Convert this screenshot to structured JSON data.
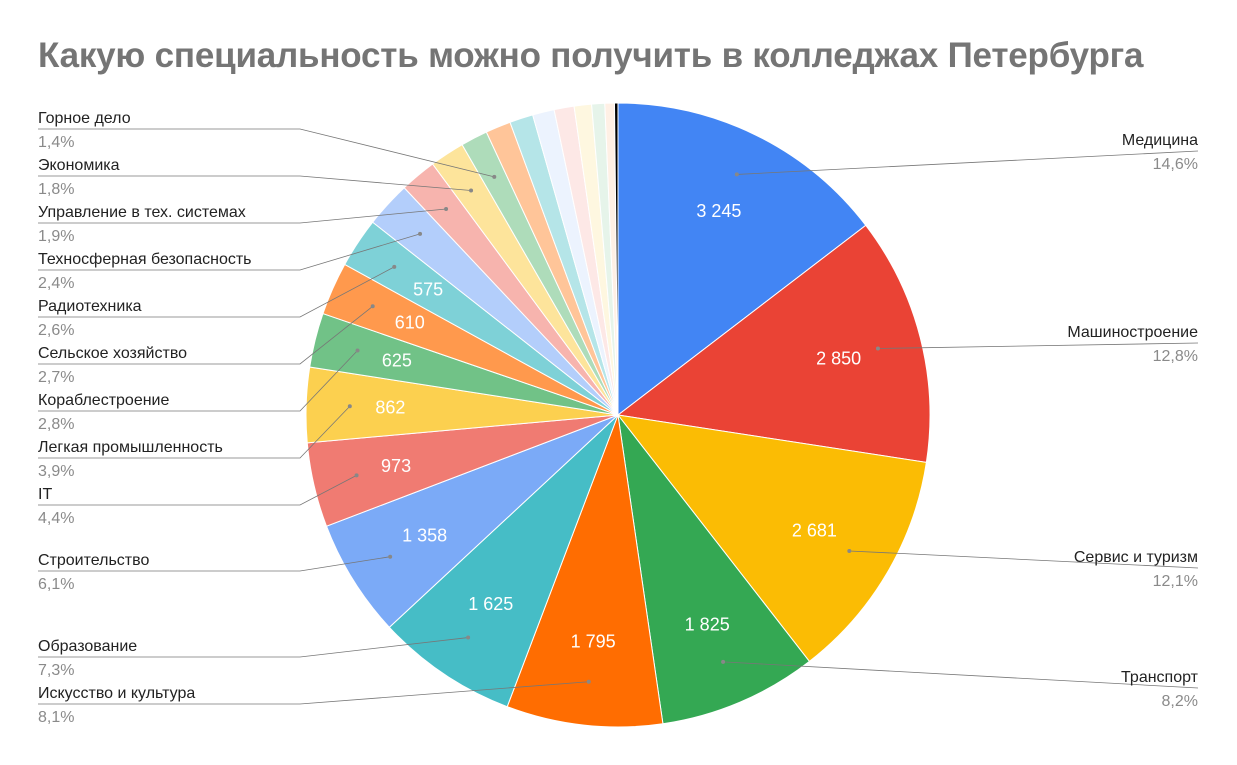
{
  "chart_data": {
    "type": "pie",
    "title": "Какую специальность можно получить в колледжах Петербурга",
    "slices": [
      {
        "name": "Медицина",
        "value": 3245,
        "value_label": "3 245",
        "percent_label": "14,6%",
        "color": "#4285f4"
      },
      {
        "name": "Машиностроение",
        "value": 2850,
        "value_label": "2 850",
        "percent_label": "12,8%",
        "color": "#ea4335"
      },
      {
        "name": "Сервис и туризм",
        "value": 2681,
        "value_label": "2 681",
        "percent_label": "12,1%",
        "color": "#fbbc04"
      },
      {
        "name": "Транспорт",
        "value": 1825,
        "value_label": "1 825",
        "percent_label": "8,2%",
        "color": "#34a853"
      },
      {
        "name": "Искусство и культура",
        "value": 1795,
        "value_label": "1 795",
        "percent_label": "8,1%",
        "color": "#ff6d01"
      },
      {
        "name": "Образование",
        "value": 1625,
        "value_label": "1 625",
        "percent_label": "7,3%",
        "color": "#46bdc6"
      },
      {
        "name": "Строительство",
        "value": 1358,
        "value_label": "1 358",
        "percent_label": "6,1%",
        "color": "#7baaf7"
      },
      {
        "name": "IT",
        "value": 973,
        "value_label": "973",
        "percent_label": "4,4%",
        "color": "#f07b72"
      },
      {
        "name": "Легкая промышленность",
        "value": 862,
        "value_label": "862",
        "percent_label": "3,9%",
        "color": "#fcd04f"
      },
      {
        "name": "Кораблестроение",
        "value": 625,
        "value_label": "625",
        "percent_label": "2,8%",
        "color": "#71c287"
      },
      {
        "name": "Сельское хозяйство",
        "value": 610,
        "value_label": "610",
        "percent_label": "2,7%",
        "color": "#ff994d"
      },
      {
        "name": "Радиотехника",
        "value": 575,
        "value_label": "575",
        "percent_label": "2,6%",
        "color": "#7ed1d7"
      },
      {
        "name": "Техносферная безопасность",
        "value": 530,
        "value_label": "",
        "percent_label": "2,4%",
        "color": "#b3cefb"
      },
      {
        "name": "Управление в тех. системах",
        "value": 420,
        "value_label": "",
        "percent_label": "1,9%",
        "color": "#f7b4ae"
      },
      {
        "name": "Экономика",
        "value": 400,
        "value_label": "",
        "percent_label": "1,8%",
        "color": "#fde49b"
      },
      {
        "name": "Горное дело",
        "value": 310,
        "value_label": "",
        "percent_label": "1,4%",
        "color": "#aedcba"
      },
      {
        "name": "",
        "value": 290,
        "value_label": "",
        "percent_label": "",
        "color": "#ffc599"
      },
      {
        "name": "",
        "value": 270,
        "value_label": "",
        "percent_label": "",
        "color": "#b5e5e8"
      },
      {
        "name": "",
        "value": 250,
        "value_label": "",
        "percent_label": "",
        "color": "#ecf3fe"
      },
      {
        "name": "",
        "value": 230,
        "value_label": "",
        "percent_label": "",
        "color": "#fde8e6"
      },
      {
        "name": "",
        "value": 200,
        "value_label": "",
        "percent_label": "",
        "color": "#fef7e0"
      },
      {
        "name": "",
        "value": 150,
        "value_label": "",
        "percent_label": "",
        "color": "#e6f4ea"
      },
      {
        "name": "",
        "value": 110,
        "value_label": "",
        "percent_label": "",
        "color": "#fff0e5"
      },
      {
        "name": "",
        "value": 40,
        "value_label": "",
        "percent_label": "",
        "color": "#000000"
      }
    ],
    "legend": "none"
  }
}
